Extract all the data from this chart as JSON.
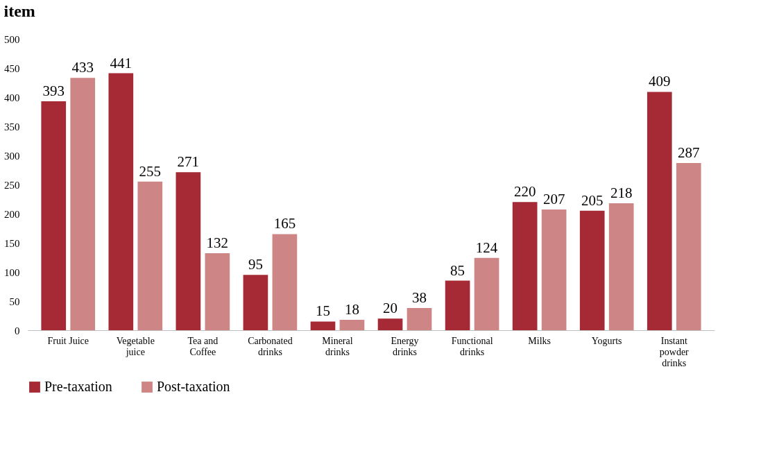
{
  "chart_data": {
    "type": "bar",
    "title": "item",
    "categories": [
      "Fruit Juice",
      "Vegetable juice",
      "Tea and Coffee",
      "Carbonated drinks",
      "Mineral drinks",
      "Energy drinks",
      "Functional drinks",
      "Milks",
      "Yogurts",
      "Instant powder drinks"
    ],
    "series": [
      {
        "name": "Pre-taxation",
        "color": "#a52a35",
        "values": [
          393,
          441,
          271,
          95,
          15,
          20,
          85,
          220,
          205,
          409
        ]
      },
      {
        "name": "Post-taxation",
        "color": "#cd8585",
        "values": [
          433,
          255,
          132,
          165,
          18,
          38,
          124,
          207,
          218,
          287
        ]
      }
    ],
    "ylim": [
      0,
      500
    ],
    "yticks": [
      0,
      50,
      100,
      150,
      200,
      250,
      300,
      350,
      400,
      450,
      500
    ],
    "data_labels": true,
    "legend": "bottom",
    "grid": false
  }
}
